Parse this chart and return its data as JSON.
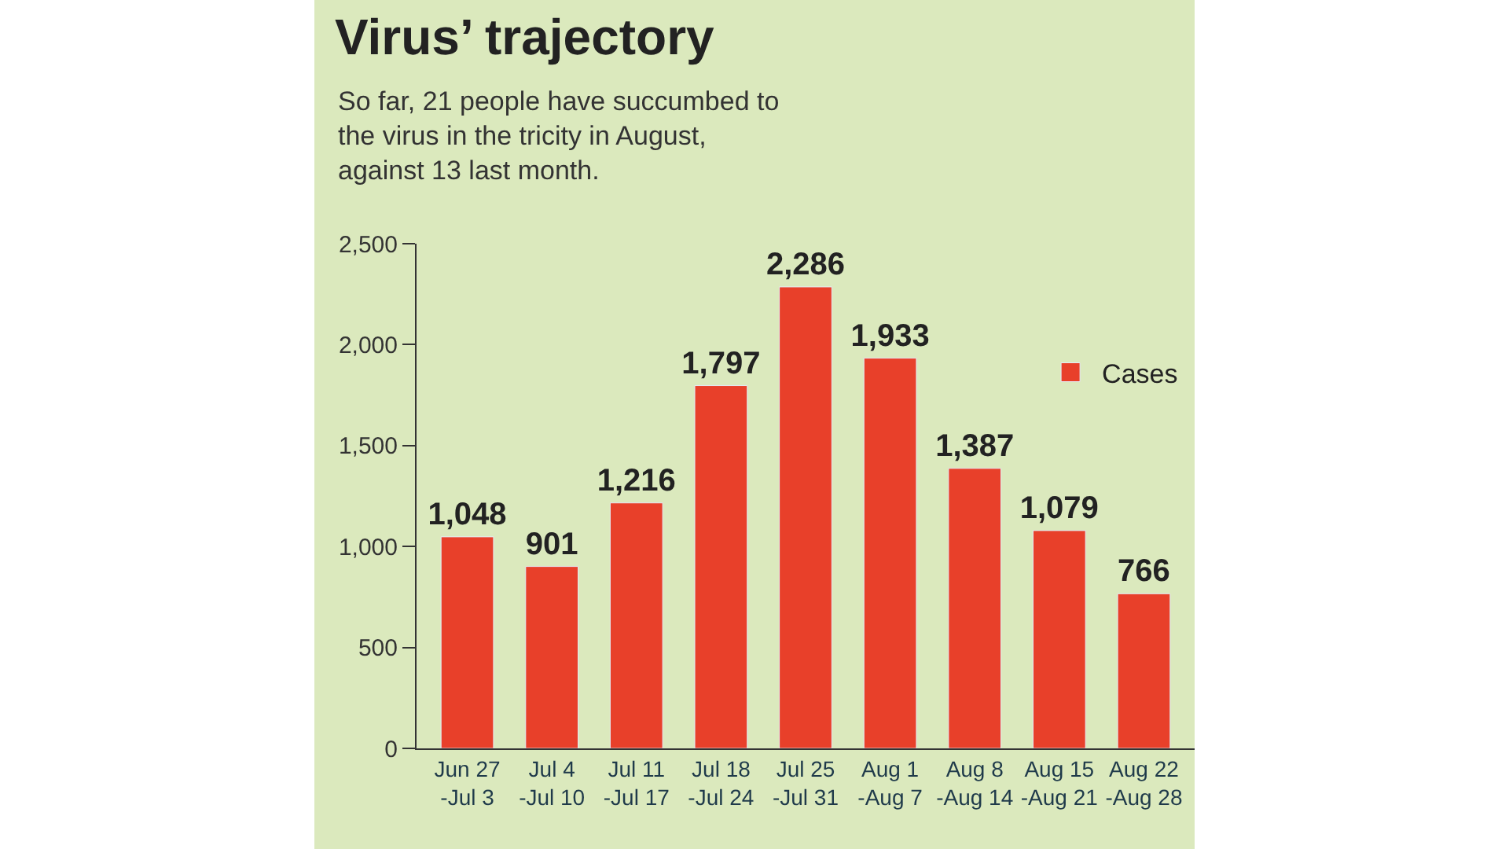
{
  "chart_data": {
    "type": "bar",
    "title": "Virus’ trajectory",
    "subtitle": "So far, 21 people have succumbed to\nthe virus in the tricity in August,\nagainst 13 last month.",
    "categories": [
      "Jun 27\n-Jul 3",
      "Jul 4\n-Jul 10",
      "Jul 11\n-Jul 17",
      "Jul 18\n-Jul 24",
      "Jul 25\n-Jul 31",
      "Aug 1\n-Aug 7",
      "Aug 8\n-Aug 14",
      "Aug 15\n-Aug 21",
      "Aug 22\n-Aug 28"
    ],
    "series": [
      {
        "name": "Cases",
        "color": "#e8402a",
        "values": [
          1048,
          901,
          1216,
          1797,
          2286,
          1933,
          1387,
          1079,
          766
        ],
        "value_labels": [
          "1,048",
          "901",
          "1,216",
          "1,797",
          "2,286",
          "1,933",
          "1,387",
          "1,079",
          "766"
        ]
      }
    ],
    "ylim": [
      0,
      2500
    ],
    "yticks": [
      {
        "value": 0,
        "label": "0"
      },
      {
        "value": 500,
        "label": "500"
      },
      {
        "value": 1000,
        "label": "1,000"
      },
      {
        "value": 1500,
        "label": "1,500"
      },
      {
        "value": 2000,
        "label": "2,000"
      },
      {
        "value": 2500,
        "label": "2,500"
      }
    ],
    "grid": false,
    "legend": "top right"
  }
}
